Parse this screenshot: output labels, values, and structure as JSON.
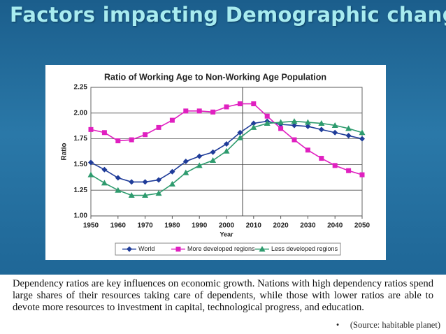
{
  "slide_title": "Factors impacting Demographic change",
  "chart_data": {
    "type": "line",
    "title": "Ratio of Working Age to Non-Working Age Population",
    "xlabel": "Year",
    "ylabel": "Ratio",
    "x": [
      1950,
      1955,
      1960,
      1965,
      1970,
      1975,
      1980,
      1985,
      1990,
      1995,
      2000,
      2005,
      2010,
      2015,
      2020,
      2025,
      2030,
      2035,
      2040,
      2045,
      2050
    ],
    "series": [
      {
        "name": "World",
        "color": "#1f3c99",
        "marker": "diamond",
        "values": [
          1.52,
          1.45,
          1.37,
          1.33,
          1.33,
          1.35,
          1.43,
          1.53,
          1.58,
          1.62,
          1.7,
          1.81,
          1.9,
          1.92,
          1.89,
          1.88,
          1.87,
          1.84,
          1.81,
          1.78,
          1.75
        ]
      },
      {
        "name": "More developed regions",
        "color": "#e020c0",
        "marker": "square",
        "values": [
          1.84,
          1.81,
          1.73,
          1.74,
          1.79,
          1.86,
          1.93,
          2.02,
          2.02,
          2.01,
          2.06,
          2.09,
          2.09,
          1.97,
          1.85,
          1.74,
          1.64,
          1.56,
          1.49,
          1.44,
          1.4
        ]
      },
      {
        "name": "Less developed regions",
        "color": "#2e9b6e",
        "marker": "triangle",
        "values": [
          1.4,
          1.32,
          1.25,
          1.2,
          1.2,
          1.22,
          1.31,
          1.42,
          1.49,
          1.54,
          1.63,
          1.76,
          1.86,
          1.9,
          1.91,
          1.92,
          1.91,
          1.9,
          1.88,
          1.85,
          1.81
        ]
      }
    ],
    "xlim": [
      1950,
      2050
    ],
    "xticks": [
      1950,
      1960,
      1970,
      1980,
      1990,
      2000,
      2010,
      2020,
      2030,
      2040,
      2050
    ],
    "ylim": [
      1.0,
      2.25
    ],
    "yticks": [
      {
        "value": 1.0,
        "label": "1.00"
      },
      1.25,
      {
        "value": 1.5,
        "label": "1.50"
      },
      1.75,
      {
        "value": 2.0,
        "label": "2.00"
      },
      2.25
    ],
    "grid": true,
    "legend": "bottom"
  },
  "paragraph": "Dependency ratios are key influences on economic growth. Nations with high dependency ratios spend large shares of their resources taking care of dependents, while those with lower ratios are able to devote more resources to investment in capital, technological progress, and education.",
  "source": "(Source: habitable planet)"
}
